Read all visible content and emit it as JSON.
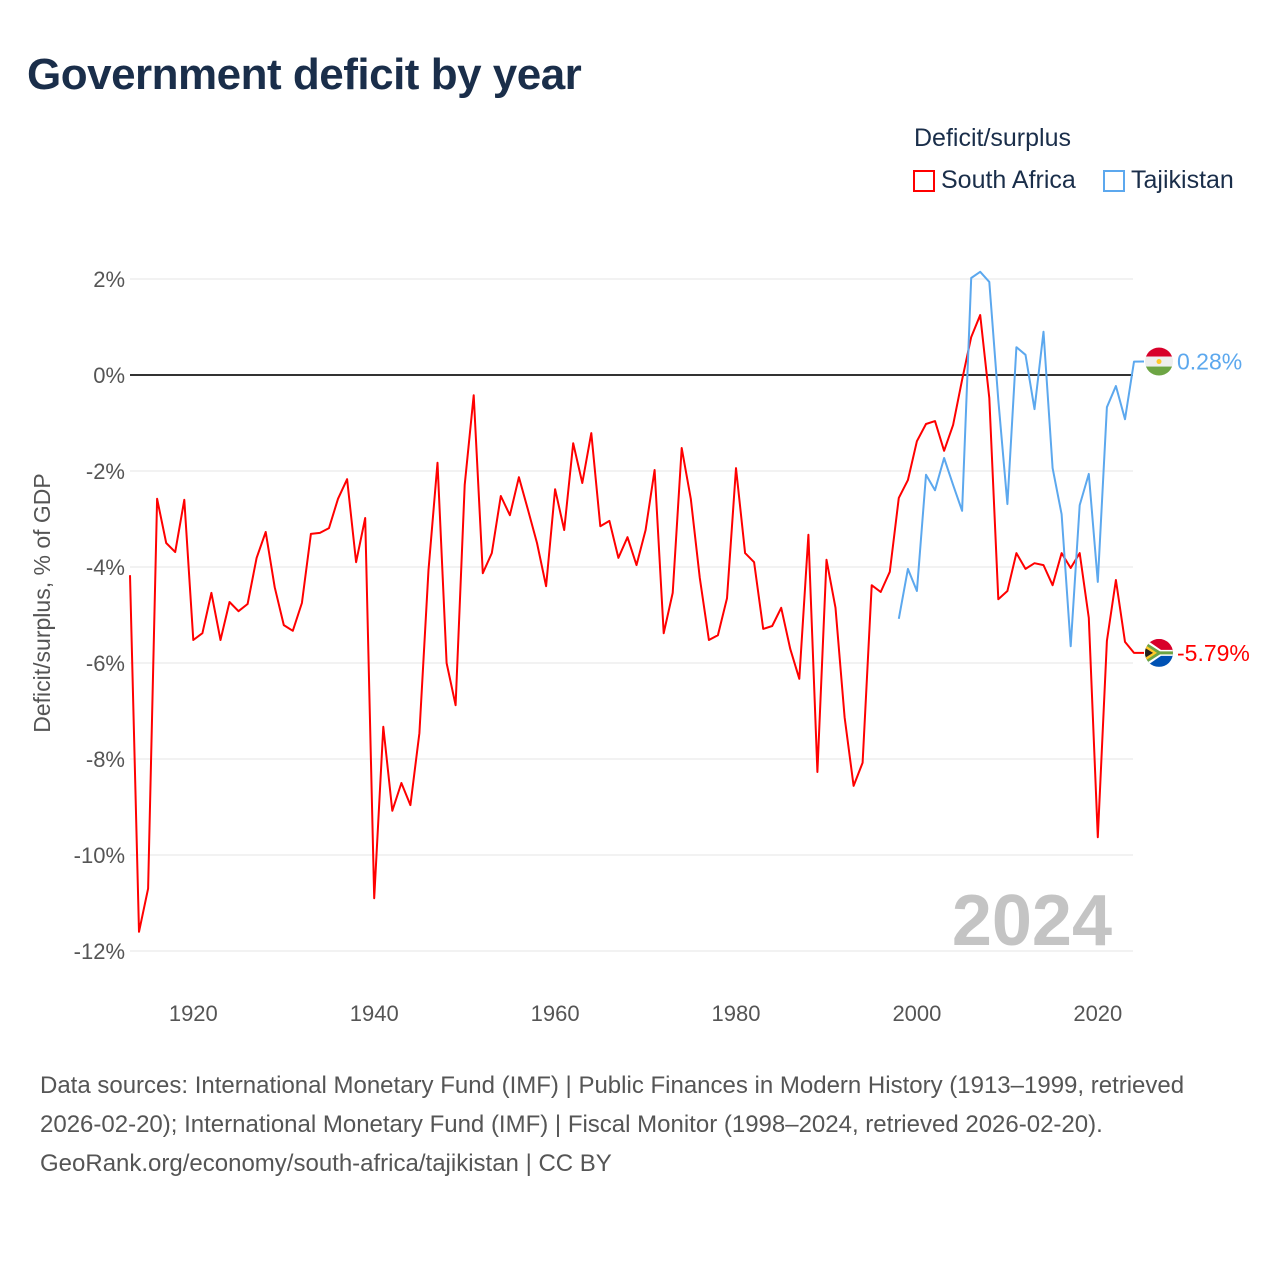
{
  "title": "Government deficit by year",
  "legend": {
    "title": "Deficit/surplus",
    "items": [
      {
        "name": "South Africa",
        "color": "#ff0000"
      },
      {
        "name": "Tajikistan",
        "color": "#5ca8ee"
      }
    ]
  },
  "footer": {
    "sources": "Data sources: International Monetary Fund (IMF) | Public Finances in Modern History (1913–1999, retrieved 2026-02-20); International Monetary Fund (IMF) | Fiscal Monitor (1998–2024, retrieved 2026-02-20).",
    "credit": "GeoRank.org/economy/south-africa/tajikistan | CC BY"
  },
  "chart_data": {
    "type": "line",
    "title": "Government deficit by year",
    "ylabel": "Deficit/surplus, % of GDP",
    "xlabel": "",
    "xlim": [
      1913,
      2024
    ],
    "ylim": [
      -12.5,
      2.5
    ],
    "x_ticks": [
      1920,
      1940,
      1960,
      1980,
      2000,
      2020
    ],
    "y_ticks": [
      2,
      0,
      -2,
      -4,
      -6,
      -8,
      -10,
      -12
    ],
    "y_tick_labels": [
      "2%",
      "0%",
      "-2%",
      "-4%",
      "-6%",
      "-8%",
      "-10%",
      "-12%"
    ],
    "year_watermark": "2024",
    "grid": true,
    "series": [
      {
        "name": "South Africa",
        "color": "#ff0000",
        "start_year": 1913,
        "end_label": "-5.79%",
        "values": [
          -4.17,
          -11.6,
          -10.7,
          -2.58,
          -3.5,
          -3.69,
          -2.6,
          -5.52,
          -5.38,
          -4.54,
          -5.52,
          -4.73,
          -4.92,
          -4.77,
          -3.81,
          -3.27,
          -4.42,
          -5.21,
          -5.33,
          -4.75,
          -3.31,
          -3.29,
          -3.19,
          -2.58,
          -2.17,
          -3.9,
          -2.98,
          -10.9,
          -7.33,
          -9.08,
          -8.5,
          -8.96,
          -7.46,
          -4.06,
          -1.83,
          -6.0,
          -6.88,
          -2.29,
          -0.42,
          -4.13,
          -3.71,
          -2.52,
          -2.92,
          -2.13,
          -2.81,
          -3.5,
          -4.4,
          -2.38,
          -3.23,
          -1.42,
          -2.25,
          -1.21,
          -3.15,
          -3.04,
          -3.81,
          -3.38,
          -3.96,
          -3.23,
          -1.98,
          -5.38,
          -4.54,
          -1.52,
          -2.58,
          -4.23,
          -5.52,
          -5.42,
          -4.65,
          -1.94,
          -3.71,
          -3.9,
          -5.29,
          -5.23,
          -4.85,
          -5.71,
          -6.33,
          -3.33,
          -8.27,
          -3.85,
          -4.85,
          -7.13,
          -8.56,
          -8.08,
          -4.38,
          -4.52,
          -4.1,
          -2.56,
          -2.19,
          -1.38,
          -1.02,
          -0.96,
          -1.58,
          -1.04,
          -0.1,
          0.79,
          1.25,
          -0.48,
          -4.67,
          -4.5,
          -3.71,
          -4.04,
          -3.92,
          -3.96,
          -4.38,
          -3.71,
          -4.02,
          -3.71,
          -5.06,
          -9.63,
          -5.54,
          -4.27,
          -5.56,
          -5.79
        ]
      },
      {
        "name": "Tajikistan",
        "color": "#5ca8ee",
        "start_year": 1998,
        "end_label": "0.28%",
        "values": [
          -5.08,
          -4.04,
          -4.5,
          -2.08,
          -2.4,
          -1.73,
          -2.29,
          -2.83,
          2.02,
          2.15,
          1.94,
          -0.52,
          -2.69,
          0.58,
          0.42,
          -0.71,
          0.9,
          -1.94,
          -2.9,
          -5.65,
          -2.71,
          -2.06,
          -4.31,
          -0.67,
          -0.23,
          -0.92,
          0.28
        ]
      }
    ]
  }
}
